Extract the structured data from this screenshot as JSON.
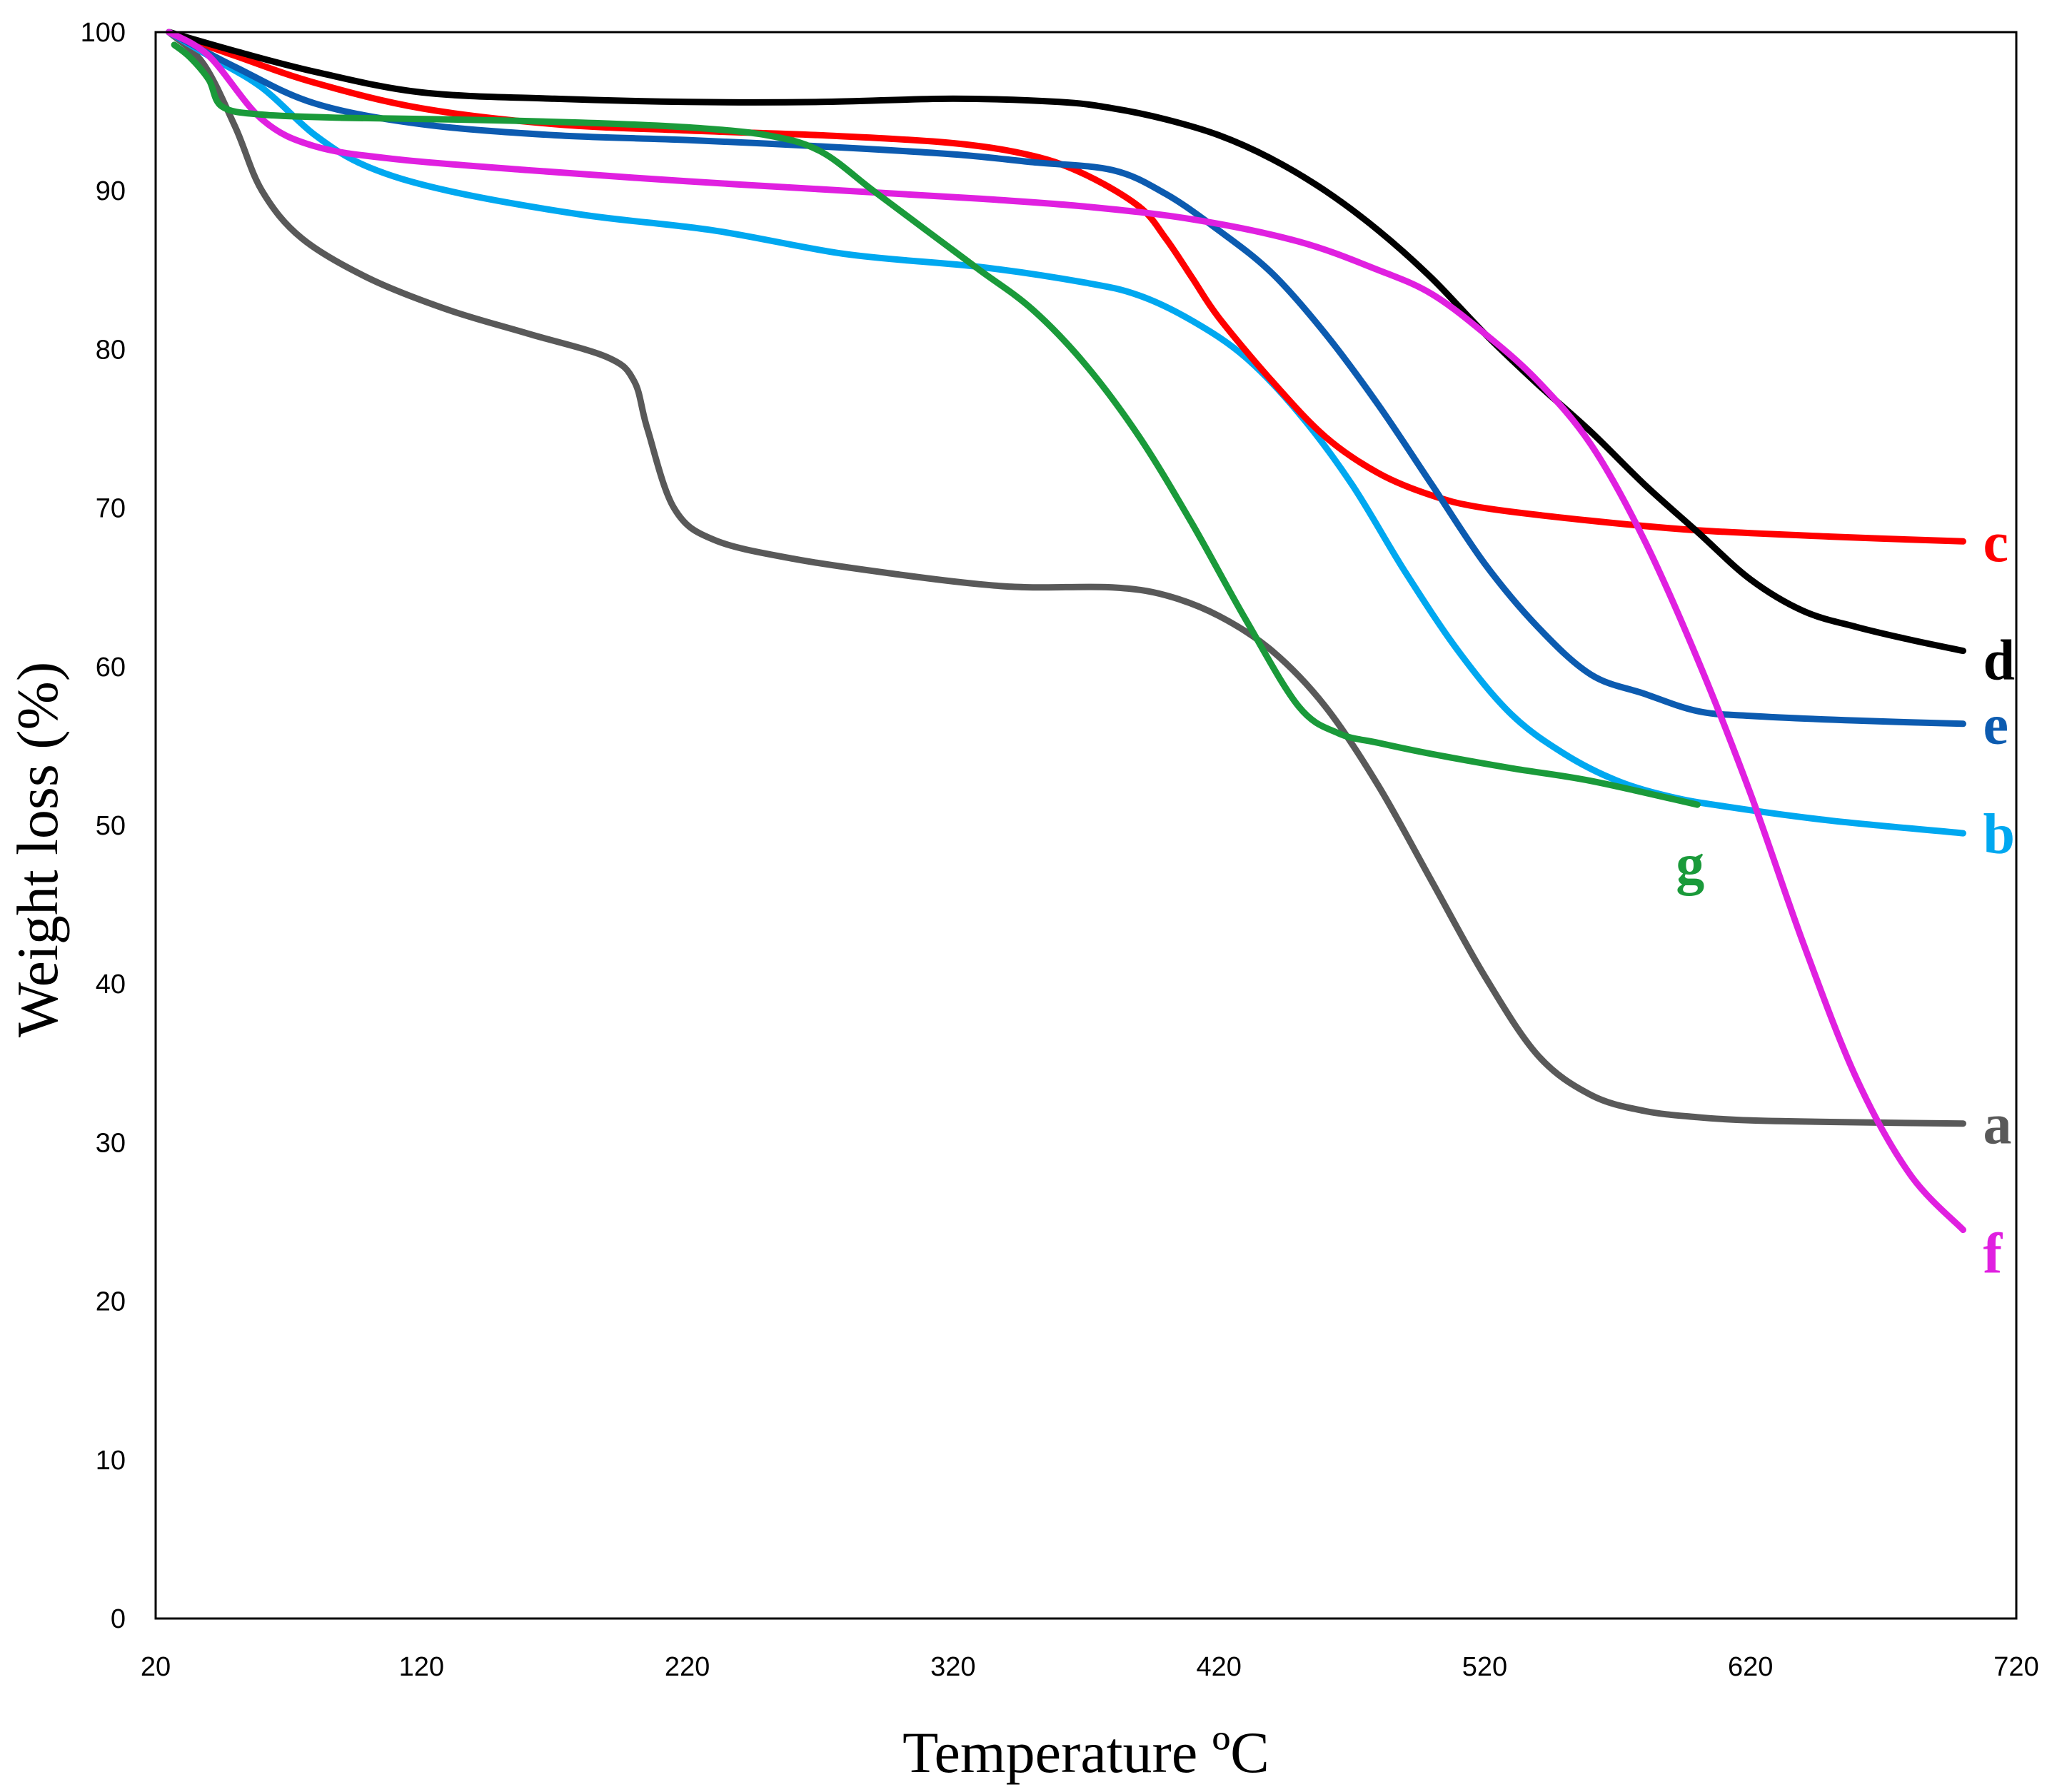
{
  "chart_data": {
    "type": "line",
    "title": "",
    "xlabel": "Temperature ºC",
    "ylabel": "Weight loss (%)",
    "xlim": [
      20,
      720
    ],
    "ylim": [
      0,
      100
    ],
    "xticks": [
      20,
      120,
      220,
      320,
      420,
      520,
      620,
      720
    ],
    "yticks": [
      0,
      10,
      20,
      30,
      40,
      50,
      60,
      70,
      80,
      90,
      100
    ],
    "grid": false,
    "legend": "inline labels at line ends",
    "series": [
      {
        "name": "a",
        "color": "#595959",
        "x": [
          25,
          38,
          50,
          60,
          75,
          100,
          130,
          160,
          190,
          200,
          205,
          215,
          230,
          260,
          300,
          330,
          350,
          380,
          400,
          420,
          440,
          460,
          480,
          500,
          520,
          540,
          560,
          580,
          600,
          620,
          650,
          700
        ],
        "y": [
          100,
          98,
          94,
          90,
          87,
          84.5,
          82.5,
          81,
          79.5,
          78,
          75,
          70,
          68,
          66.8,
          65.8,
          65.2,
          65,
          65,
          64.5,
          63.2,
          61,
          57.5,
          52.5,
          46.5,
          40.5,
          35.5,
          33,
          32,
          31.6,
          31.4,
          31.3,
          31.2
        ]
      },
      {
        "name": "b",
        "color": "#00a8f0",
        "x": [
          25,
          40,
          60,
          80,
          100,
          130,
          180,
          230,
          280,
          330,
          370,
          390,
          410,
          430,
          450,
          470,
          490,
          510,
          530,
          550,
          570,
          590,
          610,
          650,
          700
        ],
        "y": [
          100,
          98.5,
          96.5,
          93.5,
          91.5,
          90,
          88.5,
          87.5,
          86,
          85.2,
          84.2,
          83.4,
          81.8,
          79.5,
          76,
          71.5,
          66,
          61,
          57,
          54.5,
          52.8,
          51.8,
          51.2,
          50.3,
          49.5
        ]
      },
      {
        "name": "c",
        "color": "#ff0000",
        "x": [
          25,
          50,
          80,
          120,
          170,
          220,
          270,
          320,
          350,
          370,
          390,
          400,
          410,
          420,
          440,
          460,
          480,
          500,
          520,
          560,
          600,
          650,
          700
        ],
        "y": [
          100,
          98.5,
          96.8,
          95.2,
          94.2,
          93.8,
          93.5,
          93,
          92.2,
          91,
          89,
          87,
          84.5,
          82,
          78,
          74.5,
          72.2,
          70.8,
          70,
          69.2,
          68.6,
          68.2,
          67.9
        ]
      },
      {
        "name": "d",
        "color": "#000000",
        "x": [
          25,
          50,
          80,
          120,
          170,
          220,
          270,
          320,
          360,
          380,
          400,
          420,
          440,
          460,
          480,
          500,
          520,
          540,
          560,
          580,
          600,
          620,
          640,
          660,
          680,
          700
        ],
        "y": [
          100,
          98.8,
          97.5,
          96.2,
          95.8,
          95.6,
          95.6,
          95.8,
          95.6,
          95.2,
          94.5,
          93.5,
          92,
          90,
          87.5,
          84.5,
          81,
          77.8,
          74.8,
          71.5,
          68.5,
          65.5,
          63.5,
          62.5,
          61.7,
          61
        ]
      },
      {
        "name": "e",
        "color": "#0c5bb0",
        "x": [
          25,
          50,
          80,
          120,
          170,
          220,
          270,
          320,
          350,
          380,
          400,
          420,
          440,
          460,
          480,
          500,
          520,
          540,
          560,
          580,
          600,
          620,
          660,
          700
        ],
        "y": [
          100,
          97.8,
          95.5,
          94.2,
          93.5,
          93.2,
          92.8,
          92.3,
          91.8,
          91.3,
          89.8,
          87.5,
          84.8,
          81,
          76.5,
          71.5,
          66.5,
          62.5,
          59.5,
          58.3,
          57.2,
          56.9,
          56.6,
          56.4
        ]
      },
      {
        "name": "f",
        "color": "#e020e0",
        "x": [
          25,
          40,
          60,
          80,
          110,
          160,
          220,
          280,
          330,
          370,
          410,
          450,
          480,
          500,
          520,
          540,
          560,
          580,
          600,
          620,
          640,
          660,
          680,
          700
        ],
        "y": [
          100,
          98.5,
          94.5,
          92.8,
          92,
          91.3,
          90.6,
          90,
          89.5,
          89,
          88.2,
          86.8,
          85,
          83.5,
          81,
          78,
          74,
          68,
          60.5,
          52,
          42.5,
          34,
          28,
          24.5
        ]
      },
      {
        "name": "g",
        "color": "#1a9a3a",
        "x": [
          27,
          33,
          40,
          45,
          60,
          90,
          130,
          180,
          220,
          250,
          270,
          290,
          310,
          330,
          350,
          370,
          390,
          410,
          430,
          450,
          465,
          480,
          500,
          530,
          560,
          600
        ],
        "y": [
          99.2,
          98.4,
          97,
          95.3,
          94.8,
          94.6,
          94.5,
          94.3,
          94,
          93.5,
          92.5,
          90,
          87.5,
          85,
          82.5,
          79,
          74.5,
          69,
          63,
          57.5,
          55.8,
          55.2,
          54.5,
          53.6,
          52.8,
          51.3
        ]
      }
    ]
  }
}
